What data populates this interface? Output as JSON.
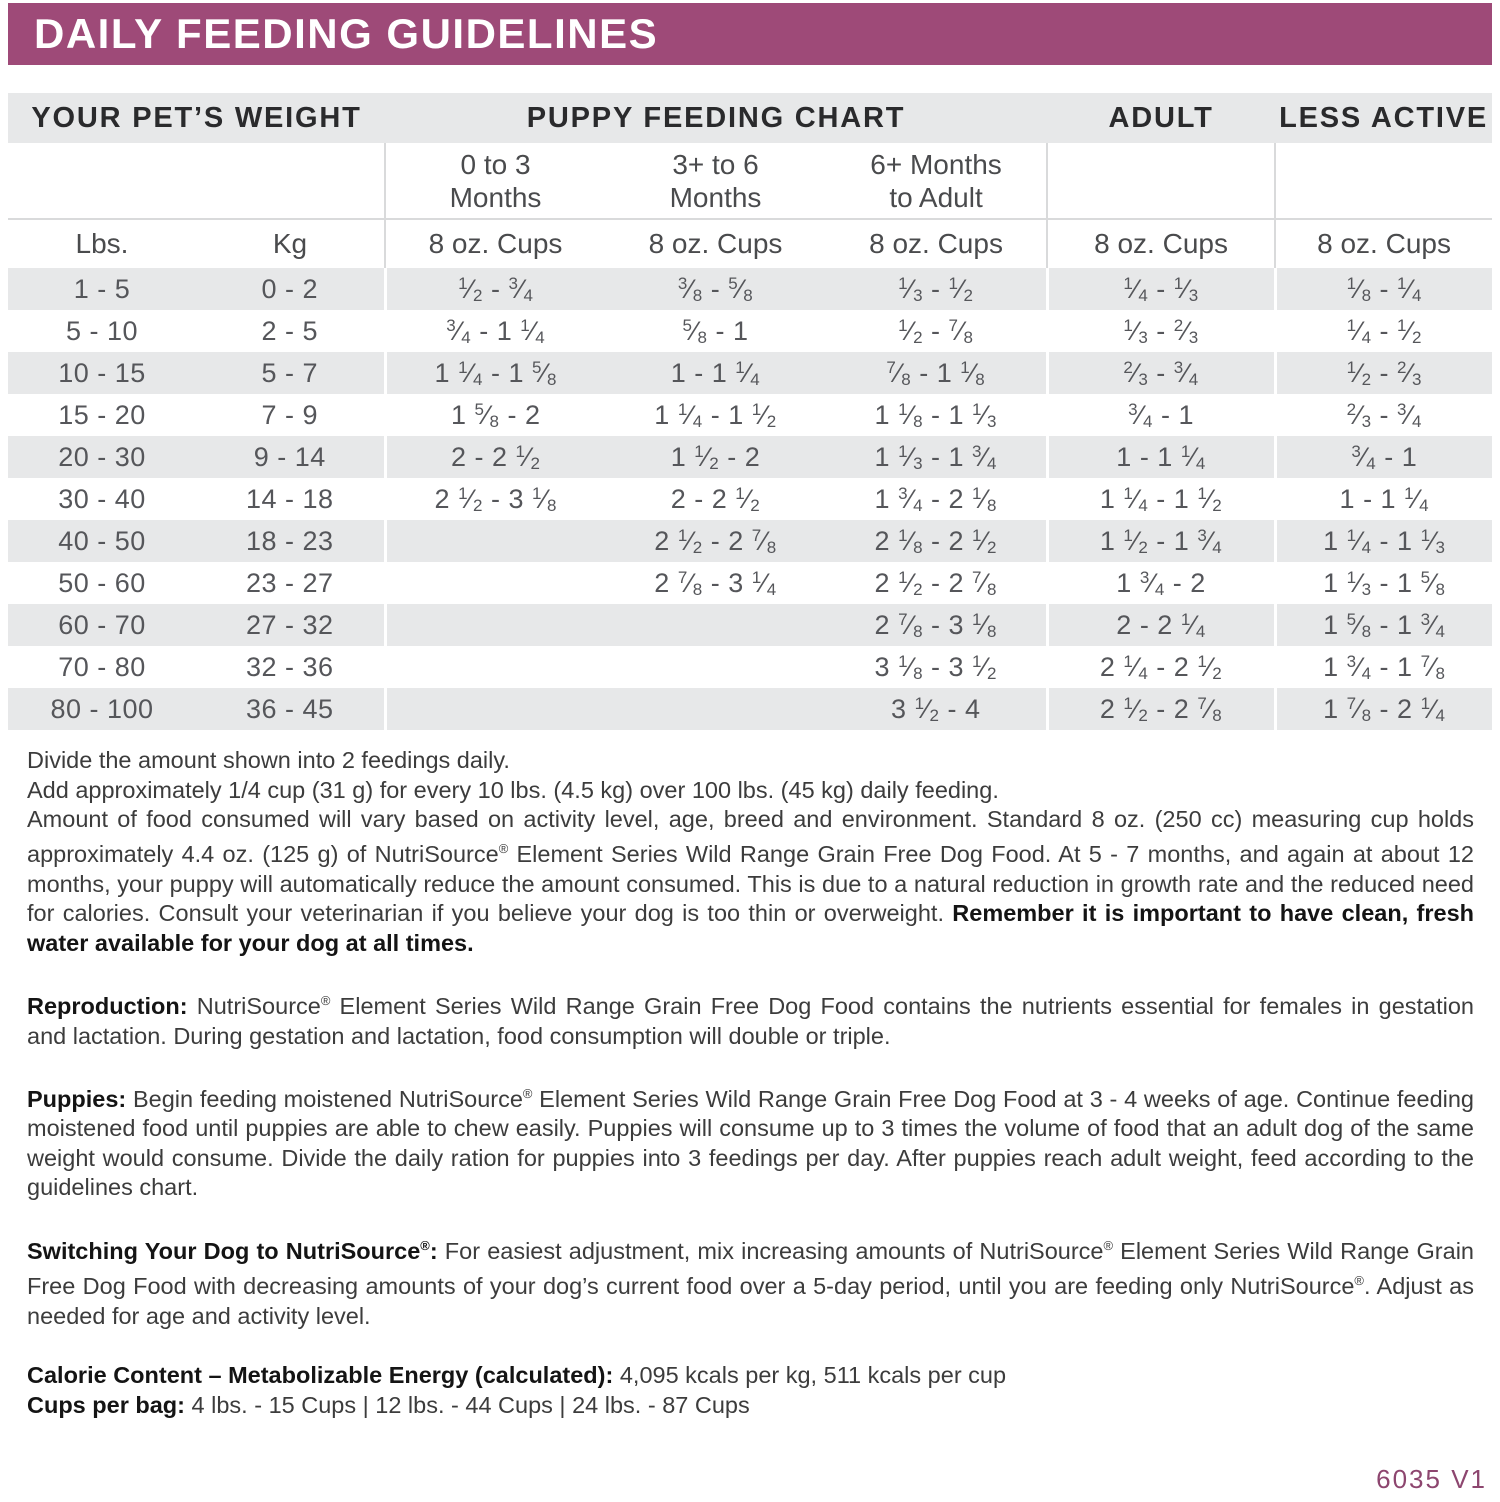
{
  "banner": {
    "title": "DAILY FEEDING GUIDELINES"
  },
  "table": {
    "group_headers": [
      "YOUR PET’S WEIGHT",
      "PUPPY FEEDING CHART",
      "ADULT",
      "LESS ACTIVE"
    ],
    "sub_headers": [
      "",
      "",
      "0 to 3\nMonths",
      "3+ to 6\nMonths",
      "6+ Months\nto Adult",
      "",
      ""
    ],
    "unit_headers": [
      "Lbs.",
      "Kg",
      "8 oz. Cups",
      "8 oz. Cups",
      "8 oz. Cups",
      "8 oz. Cups",
      "8 oz. Cups"
    ],
    "rows": [
      [
        "1 - 5",
        "0 - 2",
        "1/2 - 3/4",
        "3/8 - 5/8",
        "1/3 - 1/2",
        "1/4 - 1/3",
        "1/8 - 1/4"
      ],
      [
        "5 - 10",
        "2 - 5",
        "3/4 - 1 1/4",
        "5/8 - 1",
        "1/2 - 7/8",
        "1/3 - 2/3",
        "1/4 - 1/2"
      ],
      [
        "10 - 15",
        "5 - 7",
        "1 1/4 - 1 5/8",
        "1 - 1 1/4",
        "7/8 - 1 1/8",
        "2/3 - 3/4",
        "1/2 - 2/3"
      ],
      [
        "15 - 20",
        "7 - 9",
        "1 5/8 - 2",
        "1 1/4 - 1 1/2",
        "1 1/8 - 1 1/3",
        "3/4 - 1",
        "2/3 - 3/4"
      ],
      [
        "20 - 30",
        "9 - 14",
        "2 - 2 1/2",
        "1 1/2 - 2",
        "1 1/3 - 1 3/4",
        "1 - 1 1/4",
        "3/4 - 1"
      ],
      [
        "30 - 40",
        "14 - 18",
        "2 1/2 - 3 1/8",
        "2 - 2 1/2",
        "1 3/4 - 2 1/8",
        "1 1/4 - 1 1/2",
        "1 - 1 1/4"
      ],
      [
        "40 - 50",
        "18 - 23",
        "",
        "2 1/2 - 2 7/8",
        "2 1/8 - 2 1/2",
        "1 1/2 - 1 3/4",
        "1 1/4 - 1 1/3"
      ],
      [
        "50 - 60",
        "23 - 27",
        "",
        "2 7/8 - 3 1/4",
        "2 1/2 - 2 7/8",
        "1 3/4 - 2",
        "1 1/3 - 1 5/8"
      ],
      [
        "60 - 70",
        "27 - 32",
        "",
        "",
        "2 7/8 - 3 1/8",
        "2 - 2 1/4",
        "1 5/8 - 1 3/4"
      ],
      [
        "70 - 80",
        "32 - 36",
        "",
        "",
        "3 1/8 - 3 1/2",
        "2 1/4 - 2 1/2",
        "1 3/4 - 1 7/8"
      ],
      [
        "80 - 100",
        "36 - 45",
        "",
        "",
        "3 1/2 - 4",
        "2 1/2 - 2 7/8",
        "1 7/8 - 2 1/4"
      ]
    ]
  },
  "notes": {
    "line1": "Divide the amount shown into 2 feedings daily.",
    "line2": "Add approximately 1/4 cup (31 g) for every 10 lbs. (4.5 kg) over 100 lbs. (45 kg) daily feeding.",
    "para3_text": "Amount of food consumed will vary based on activity level, age, breed and environment. Standard 8 oz. (250 cc) measuring cup holds approximately 4.4 oz. (125 g) of NutriSource® Element Series Wild Range Grain Free Dog Food. At 5 - 7 months, and again at about 12 months, your puppy will automatically reduce the amount consumed. This is due to a natural reduction in growth rate and the reduced need for calories. Consult your veterinarian if you believe your dog is too thin or overweight. ",
    "para3_bold": "Remember it is important to have clean, fresh water available for your dog at all times.",
    "reproduction_label": "Reproduction:",
    "reproduction_text": " NutriSource® Element Series Wild Range Grain Free Dog Food contains the nutrients essential for females in gestation and lactation. During gestation and lactation, food consumption will double or triple.",
    "puppies_label": "Puppies:",
    "puppies_text": " Begin feeding moistened NutriSource® Element Series Wild Range Grain Free Dog Food at 3 - 4 weeks of age. Continue feeding moistened food until puppies are able to chew easily. Puppies will consume up to 3 times the volume of food that an adult dog of the same weight would consume. Divide the daily ration for puppies into 3 feedings per day. After puppies reach adult weight, feed according to the guidelines chart.",
    "switching_label": "Switching Your Dog to NutriSource®:",
    "switching_text": " For easiest adjustment, mix increasing amounts of NutriSource® Element Series Wild Range Grain Free Dog Food with decreasing amounts of your dog’s current food over a 5-day period, until you are feeding only NutriSource®. Adjust as needed for age and activity level.",
    "calorie_label": "Calorie Content – Metabolizable Energy (calculated):",
    "calorie_text": " 4,095 kcals per kg, 511 kcals per cup",
    "cups_label": "Cups per bag:",
    "cups_text": " 4 lbs. - 15 Cups | 12 lbs. - 44 Cups | 24 lbs. - 87 Cups"
  },
  "footer": {
    "code": "6035 V1"
  },
  "colors": {
    "brand_purple": "#9e4a78",
    "footer_purple": "#8d466f",
    "row_gray": "#e7e8e9",
    "divider_gray": "#d9dadb"
  }
}
